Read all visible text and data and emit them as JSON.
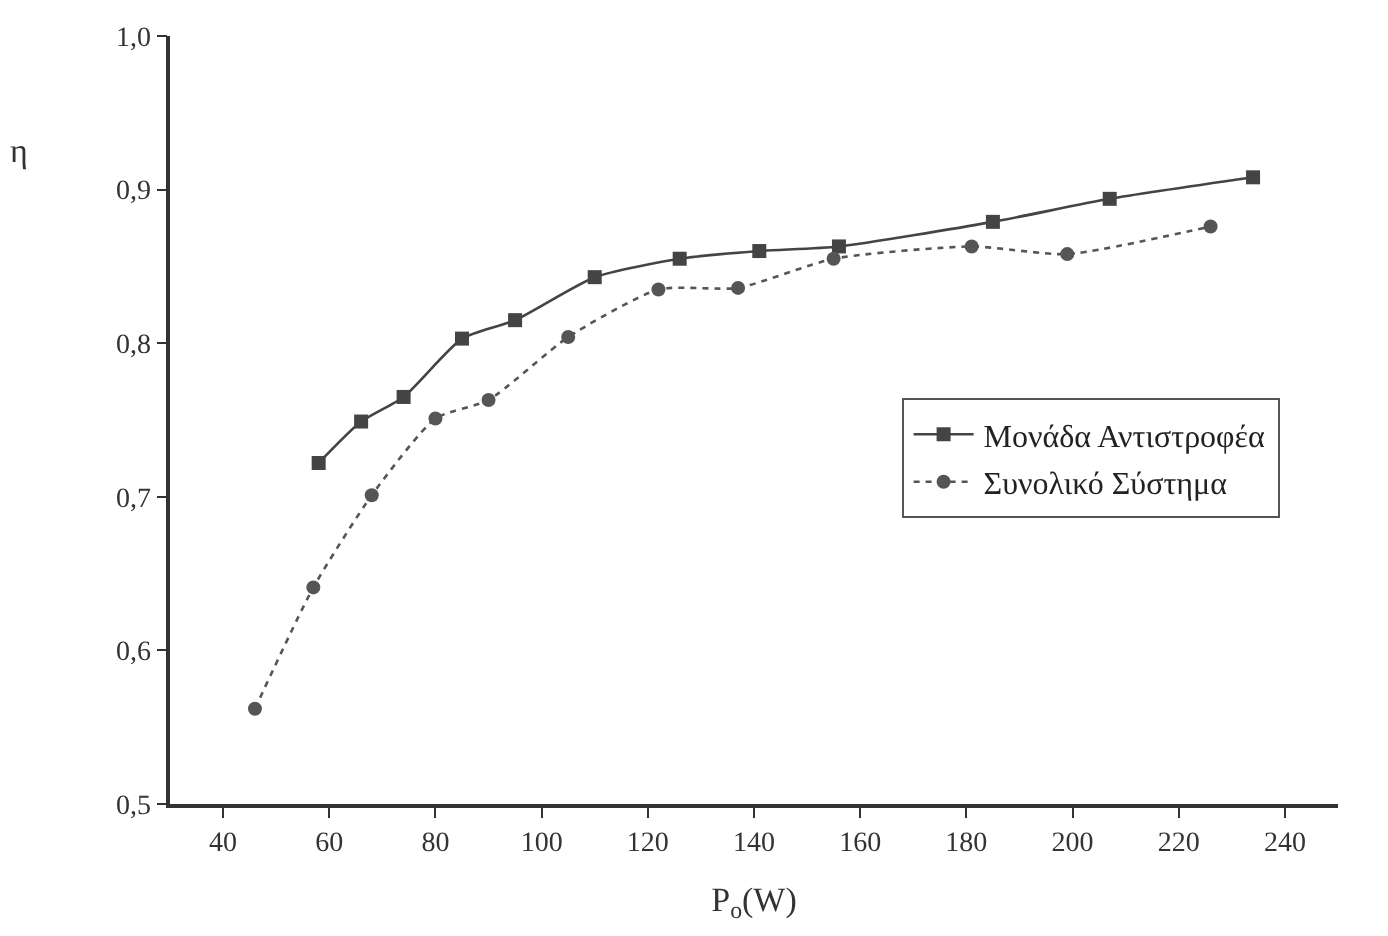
{
  "chart_data": {
    "type": "line",
    "xlabel": "P$_{o}$(W)",
    "ylabel": "η",
    "xlim": [
      30,
      250
    ],
    "xticks": [
      40,
      60,
      80,
      100,
      120,
      140,
      160,
      180,
      200,
      220,
      240
    ],
    "ylim": [
      0.5,
      1.0
    ],
    "yticks": [
      {
        "value": 0.5,
        "label": "0,5"
      },
      {
        "value": 0.6,
        "label": "0,6"
      },
      {
        "value": 0.7,
        "label": "0,7"
      },
      {
        "value": 0.8,
        "label": "0,8"
      },
      {
        "value": 0.9,
        "label": "0,9"
      },
      {
        "value": 1.0,
        "label": "1,0"
      }
    ],
    "legend": "right",
    "series": [
      {
        "name": "Μονάδα Αντιστροφέα",
        "color": "#444444",
        "marker": "square",
        "line_style": "solid",
        "x": [
          58,
          66,
          74,
          85,
          95,
          110,
          126,
          141,
          156,
          185,
          207,
          234
        ],
        "values": [
          0.722,
          0.749,
          0.765,
          0.803,
          0.815,
          0.843,
          0.855,
          0.86,
          0.863,
          0.879,
          0.894,
          0.908
        ]
      },
      {
        "name": "Συνολικό Σύστημα",
        "color": "#555555",
        "marker": "circle",
        "line_style": "dotted",
        "x": [
          46,
          57,
          68,
          80,
          90,
          105,
          122,
          137,
          155,
          181,
          199,
          226
        ],
        "values": [
          0.562,
          0.641,
          0.701,
          0.751,
          0.763,
          0.804,
          0.835,
          0.836,
          0.855,
          0.863,
          0.858,
          0.876
        ]
      }
    ]
  }
}
